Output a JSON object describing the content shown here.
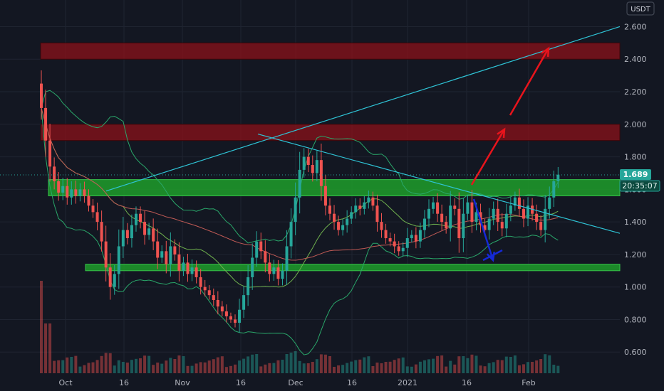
{
  "header": {
    "currency": "USDT"
  },
  "colors": {
    "background": "#131722",
    "up": "#26a69a",
    "down": "#ef5350",
    "support_zone": "#1e9e2a",
    "resistance_zone": "#8b1219",
    "trendline": "#2fc4d6",
    "band": "#2aa76a",
    "ma": "#c05a55",
    "arrow_up": "#e8141c",
    "arrow_down": "#1529d6"
  },
  "chart_data": {
    "type": "candlestick",
    "y_ticks": [
      "2.600",
      "2.400",
      "2.200",
      "2.000",
      "1.800",
      "1.600",
      "1.400",
      "1.200",
      "1.000",
      "0.800",
      "0.600"
    ],
    "x_ticks": [
      "Oct",
      "16",
      "Nov",
      "16",
      "Dec",
      "16",
      "2021",
      "16",
      "Feb"
    ],
    "ylim": [
      0.47,
      2.72
    ],
    "last_price": "1.689",
    "countdown": "20:35:07",
    "zones": [
      {
        "kind": "resistance",
        "low": 2.4,
        "high": 2.5
      },
      {
        "kind": "resistance",
        "low": 1.9,
        "high": 2.0
      },
      {
        "kind": "support",
        "low": 1.56,
        "high": 1.66
      },
      {
        "kind": "support",
        "low": 1.1,
        "high": 1.14
      }
    ],
    "trendlines": [
      {
        "kind": "rising",
        "from": [
          6,
          1.59
        ],
        "to": [
          99,
          2.6
        ]
      },
      {
        "kind": "falling",
        "from": [
          37,
          1.94
        ],
        "to": [
          99,
          1.33
        ]
      }
    ],
    "closes": [
      2.1,
      1.9,
      1.74,
      1.65,
      1.58,
      1.62,
      1.55,
      1.6,
      1.56,
      1.6,
      1.56,
      1.5,
      1.46,
      1.4,
      1.28,
      1.12,
      1.0,
      1.08,
      1.25,
      1.35,
      1.3,
      1.38,
      1.45,
      1.4,
      1.32,
      1.36,
      1.28,
      1.18,
      1.22,
      1.14,
      1.25,
      1.2,
      1.1,
      1.15,
      1.08,
      1.12,
      1.06,
      1.0,
      0.98,
      0.95,
      0.92,
      0.88,
      0.85,
      0.82,
      0.8,
      0.78,
      0.86,
      0.95,
      1.06,
      1.18,
      1.28,
      1.22,
      1.15,
      1.08,
      1.12,
      1.05,
      1.1,
      1.25,
      1.4,
      1.55,
      1.72,
      1.8,
      1.75,
      1.7,
      1.78,
      1.62,
      1.5,
      1.45,
      1.4,
      1.35,
      1.38,
      1.42,
      1.46,
      1.5,
      1.48,
      1.52,
      1.55,
      1.5,
      1.4,
      1.35,
      1.3,
      1.28,
      1.25,
      1.22,
      1.24,
      1.3,
      1.32,
      1.28,
      1.35,
      1.42,
      1.48,
      1.52,
      1.45,
      1.4,
      1.36,
      1.5,
      1.48,
      1.3,
      1.45,
      1.52,
      1.4,
      1.46,
      1.38,
      1.35,
      1.42,
      1.48,
      1.4,
      1.36,
      1.45,
      1.5,
      1.55,
      1.48,
      1.42,
      1.5,
      1.45,
      1.4,
      1.35,
      1.48,
      1.55,
      1.65,
      1.69
    ]
  }
}
